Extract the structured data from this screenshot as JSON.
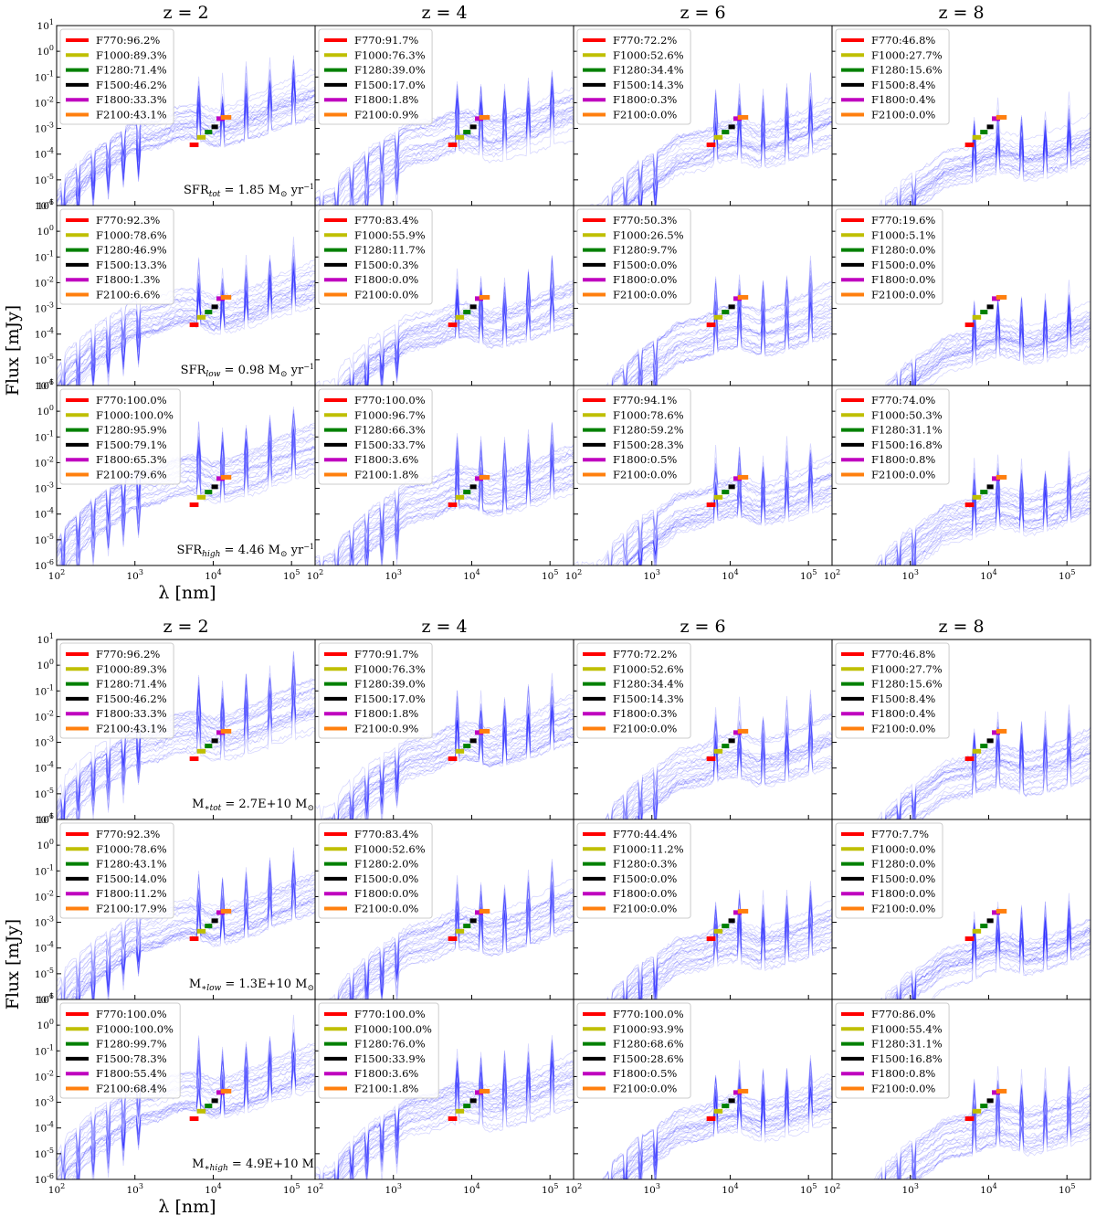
{
  "figure": {
    "top_block": {
      "panel_titles": [
        "z = 2",
        "z = 4",
        "z = 6",
        "z = 8"
      ]
    },
    "bottom_block": {
      "panel_titles": [
        "z = 2",
        "z = 4",
        "z = 6",
        "z = 8"
      ]
    },
    "ylabel": "Flux [mJy]",
    "xlabel": "λ [nm]"
  },
  "colors": {
    "F770": "#ff0000",
    "F1000": "#bfbf00",
    "F1280": "#008000",
    "F1500": "#000000",
    "F1800": "#bf00bf",
    "F2100": "#ff7f0e",
    "sed": "#0000ff"
  },
  "chart_data": {
    "type": "line",
    "description_axes": {
      "x": {
        "label": "λ [nm]",
        "scale": "log",
        "lim": [
          100,
          200000
        ],
        "ticks": [
          100,
          1000,
          10000,
          100000
        ],
        "tick_labels": [
          "10^2",
          "10^3",
          "10^4",
          "10^5"
        ]
      },
      "y": {
        "label": "Flux [mJy]",
        "scale": "log",
        "lim": [
          1e-06,
          10
        ],
        "ticks": [
          1e-06,
          1e-05,
          0.0001,
          0.001,
          0.01,
          0.1,
          1,
          10
        ],
        "tick_labels": [
          "10^-6",
          "10^-5",
          "10^-4",
          "10^-3",
          "10^-2",
          "10^-1",
          "10^0",
          "10^1"
        ]
      }
    },
    "filters": [
      {
        "name": "F770",
        "x_range": [
          5000,
          6500
        ],
        "y": 0.00023
      },
      {
        "name": "F1000",
        "x_range": [
          6200,
          8000
        ],
        "y": 0.00045
      },
      {
        "name": "F1280",
        "x_range": [
          7800,
          9700
        ],
        "y": 0.00072
      },
      {
        "name": "F1500",
        "x_range": [
          9500,
          11500
        ],
        "y": 0.00115
      },
      {
        "name": "F1800",
        "x_range": [
          11000,
          14000
        ],
        "y": 0.0024
      },
      {
        "name": "F2100",
        "x_range": [
          12500,
          17000
        ],
        "y": 0.0027
      }
    ],
    "blocks": [
      {
        "rows": [
          {
            "annotation": {
              "name": "SFR",
              "sub": "tot",
              "value": " = 1.85 M",
              "unit": "yr",
              "sun_sub": true
            },
            "legends": [
              [
                "F770:96.2%",
                "F1000:89.3%",
                "F1280:71.4%",
                "F1500:46.2%",
                "F1800:33.3%",
                "F2100:43.1%"
              ],
              [
                "F770:91.7%",
                "F1000:76.3%",
                "F1280:39.0%",
                "F1500:17.0%",
                "F1800:1.8%",
                "F2100:0.9%"
              ],
              [
                "F770:72.2%",
                "F1000:52.6%",
                "F1280:34.4%",
                "F1500:14.3%",
                "F1800:0.3%",
                "F2100:0.0%"
              ],
              [
                "F770:46.8%",
                "F1000:27.7%",
                "F1280:15.6%",
                "F1500:8.4%",
                "F1800:0.4%",
                "F2100:0.0%"
              ]
            ]
          },
          {
            "annotation": {
              "name": "SFR",
              "sub": "low",
              "value": " = 0.98 M",
              "unit": "yr",
              "sun_sub": true
            },
            "legends": [
              [
                "F770:92.3%",
                "F1000:78.6%",
                "F1280:46.9%",
                "F1500:13.3%",
                "F1800:1.3%",
                "F2100:6.6%"
              ],
              [
                "F770:83.4%",
                "F1000:55.9%",
                "F1280:11.7%",
                "F1500:0.3%",
                "F1800:0.0%",
                "F2100:0.0%"
              ],
              [
                "F770:50.3%",
                "F1000:26.5%",
                "F1280:9.7%",
                "F1500:0.0%",
                "F1800:0.0%",
                "F2100:0.0%"
              ],
              [
                "F770:19.6%",
                "F1000:5.1%",
                "F1280:0.0%",
                "F1500:0.0%",
                "F1800:0.0%",
                "F2100:0.0%"
              ]
            ]
          },
          {
            "annotation": {
              "name": "SFR",
              "sub": "high",
              "value": " = 4.46 M",
              "unit": "yr",
              "sun_sub": true
            },
            "legends": [
              [
                "F770:100.0%",
                "F1000:100.0%",
                "F1280:95.9%",
                "F1500:79.1%",
                "F1800:65.3%",
                "F2100:79.6%"
              ],
              [
                "F770:100.0%",
                "F1000:96.7%",
                "F1280:66.3%",
                "F1500:33.7%",
                "F1800:3.6%",
                "F2100:1.8%"
              ],
              [
                "F770:94.1%",
                "F1000:78.6%",
                "F1280:59.2%",
                "F1500:28.3%",
                "F1800:0.5%",
                "F2100:0.0%"
              ],
              [
                "F770:74.0%",
                "F1000:50.3%",
                "F1280:31.1%",
                "F1500:16.8%",
                "F1800:0.8%",
                "F2100:0.0%"
              ]
            ]
          }
        ]
      },
      {
        "rows": [
          {
            "annotation": {
              "name": "M",
              "sub": "∗tot",
              "value": " = 2.7E+10 M",
              "unit": "",
              "sun_sub": true
            },
            "legends": [
              [
                "F770:96.2%",
                "F1000:89.3%",
                "F1280:71.4%",
                "F1500:46.2%",
                "F1800:33.3%",
                "F2100:43.1%"
              ],
              [
                "F770:91.7%",
                "F1000:76.3%",
                "F1280:39.0%",
                "F1500:17.0%",
                "F1800:1.8%",
                "F2100:0.9%"
              ],
              [
                "F770:72.2%",
                "F1000:52.6%",
                "F1280:34.4%",
                "F1500:14.3%",
                "F1800:0.3%",
                "F2100:0.0%"
              ],
              [
                "F770:46.8%",
                "F1000:27.7%",
                "F1280:15.6%",
                "F1500:8.4%",
                "F1800:0.4%",
                "F2100:0.0%"
              ]
            ]
          },
          {
            "annotation": {
              "name": "M",
              "sub": "∗low",
              "value": " = 1.3E+10 M",
              "unit": "",
              "sun_sub": true
            },
            "legends": [
              [
                "F770:92.3%",
                "F1000:78.6%",
                "F1280:43.1%",
                "F1500:14.0%",
                "F1800:11.2%",
                "F2100:17.9%"
              ],
              [
                "F770:83.4%",
                "F1000:52.6%",
                "F1280:2.0%",
                "F1500:0.0%",
                "F1800:0.0%",
                "F2100:0.0%"
              ],
              [
                "F770:44.4%",
                "F1000:11.2%",
                "F1280:0.3%",
                "F1500:0.0%",
                "F1800:0.0%",
                "F2100:0.0%"
              ],
              [
                "F770:7.7%",
                "F1000:0.0%",
                "F1280:0.0%",
                "F1500:0.0%",
                "F1800:0.0%",
                "F2100:0.0%"
              ]
            ]
          },
          {
            "annotation": {
              "name": "M",
              "sub": "∗high",
              "value": " = 4.9E+10 M",
              "unit": "",
              "sun_sub": false
            },
            "legends": [
              [
                "F770:100.0%",
                "F1000:100.0%",
                "F1280:99.7%",
                "F1500:78.3%",
                "F1800:55.4%",
                "F2100:68.4%"
              ],
              [
                "F770:100.0%",
                "F1000:100.0%",
                "F1280:76.0%",
                "F1500:33.9%",
                "F1800:3.6%",
                "F2100:1.8%"
              ],
              [
                "F770:100.0%",
                "F1000:93.9%",
                "F1280:68.6%",
                "F1500:28.6%",
                "F1800:0.5%",
                "F2100:0.0%"
              ],
              [
                "F770:86.0%",
                "F1000:55.4%",
                "F1280:31.1%",
                "F1500:16.8%",
                "F1800:0.8%",
                "F2100:0.0%"
              ]
            ]
          }
        ]
      }
    ]
  }
}
